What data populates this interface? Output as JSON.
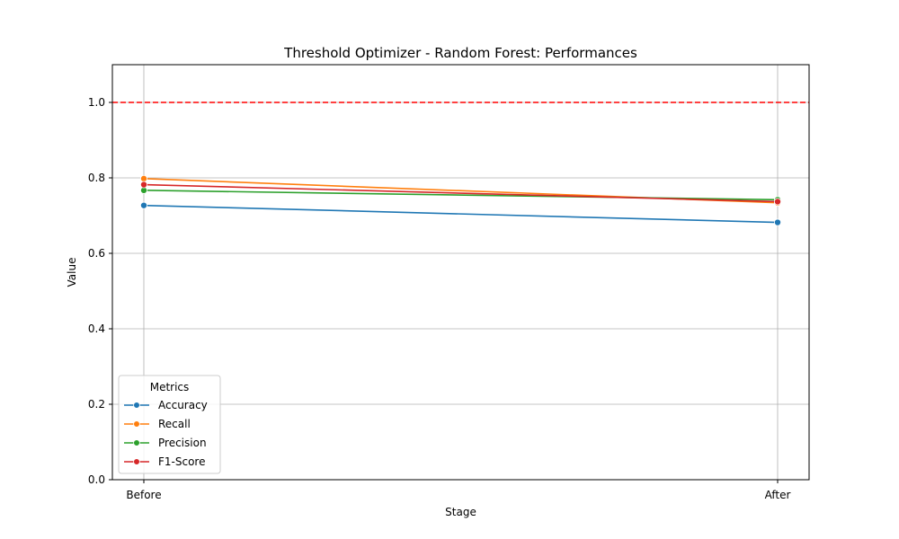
{
  "chart_data": {
    "type": "line",
    "title": "Threshold Optimizer - Random Forest: Performances",
    "xlabel": "Stage",
    "ylabel": "Value",
    "categories": [
      "Before",
      "After"
    ],
    "ylim": [
      0,
      1.1
    ],
    "yticks": [
      "0.0",
      "0.2",
      "0.4",
      "0.6",
      "0.8",
      "1.0"
    ],
    "grid": true,
    "reference_line": {
      "y": 1.0,
      "color": "#ff0000",
      "style": "dashed"
    },
    "legend": {
      "title": "Metrics",
      "placement": "lower-left"
    },
    "series": [
      {
        "name": "Accuracy",
        "color": "#1f77b4",
        "values": [
          0.727,
          0.682
        ]
      },
      {
        "name": "Recall",
        "color": "#ff7f0e",
        "values": [
          0.798,
          0.734
        ]
      },
      {
        "name": "Precision",
        "color": "#2ca02c",
        "values": [
          0.767,
          0.742
        ]
      },
      {
        "name": "F1-Score",
        "color": "#d62728",
        "values": [
          0.782,
          0.737
        ]
      }
    ]
  }
}
